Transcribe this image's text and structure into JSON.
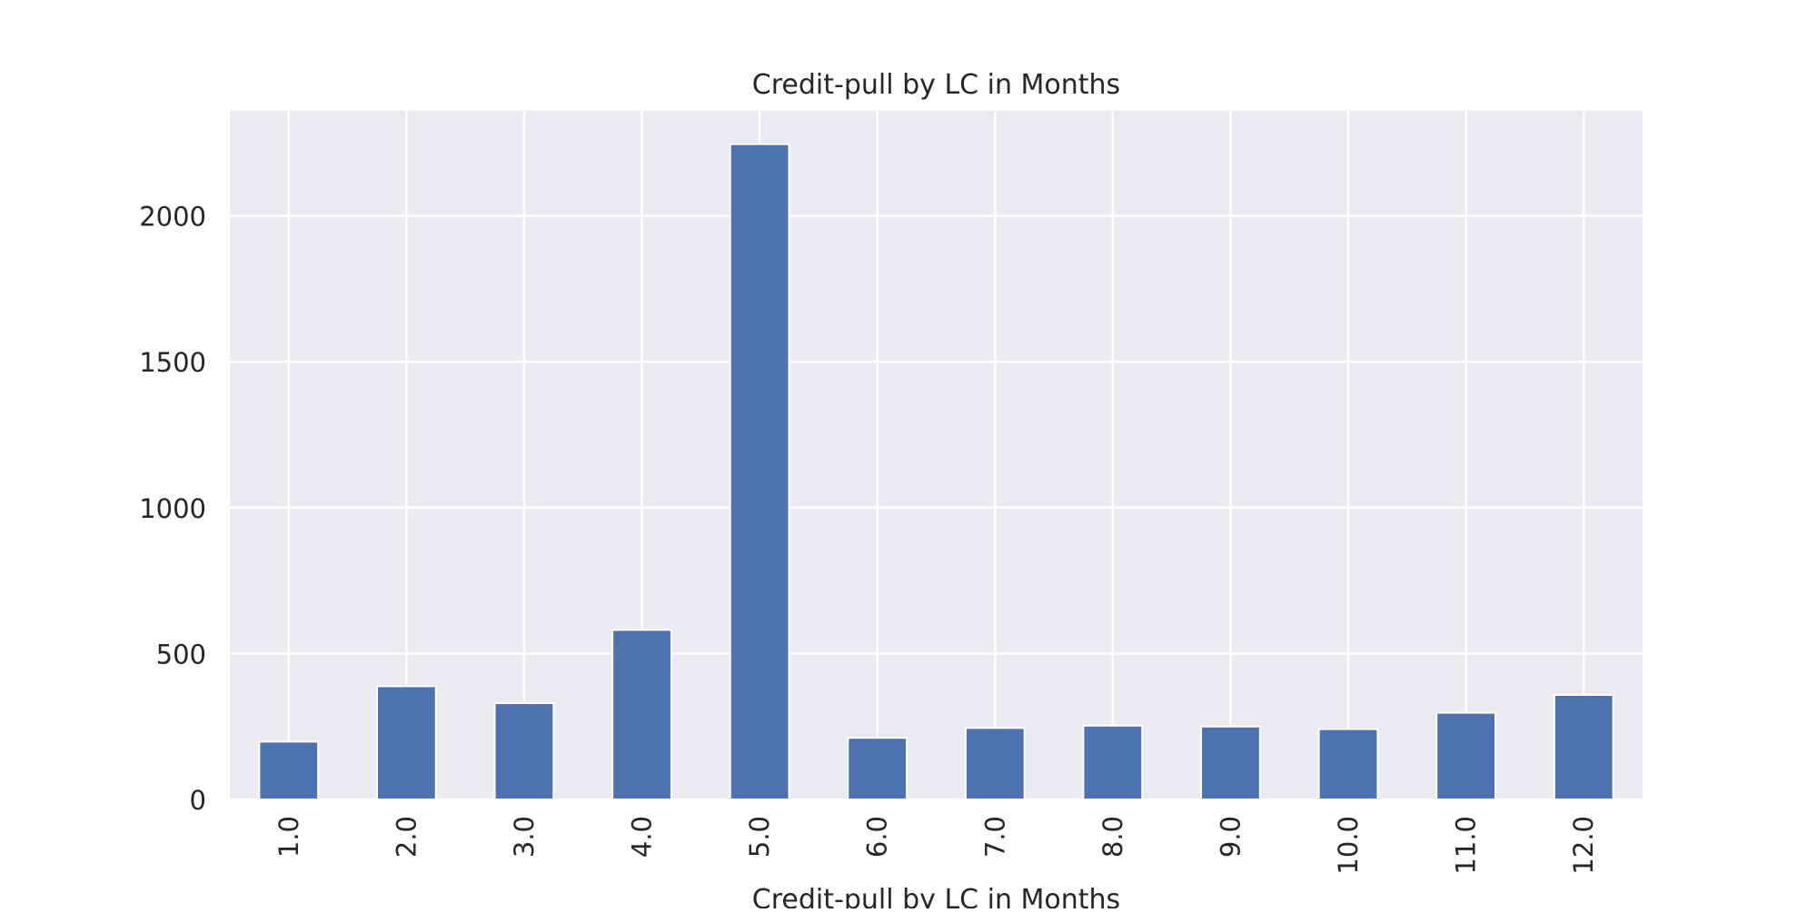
{
  "chart_data": {
    "type": "bar",
    "title": "Credit-pull by LC in Months",
    "xlabel": "Credit-pull by LC in Months",
    "ylabel": "",
    "categories": [
      "1.0",
      "2.0",
      "3.0",
      "4.0",
      "5.0",
      "6.0",
      "7.0",
      "8.0",
      "9.0",
      "10.0",
      "11.0",
      "12.0"
    ],
    "values": [
      198,
      388,
      330,
      581,
      2246,
      211,
      245,
      253,
      250,
      241,
      297,
      358
    ],
    "ylim": [
      0,
      2360
    ],
    "yticks": [
      0,
      500,
      1000,
      1500,
      2000
    ],
    "grid": true,
    "legend": "none",
    "colors": {
      "bar": "#4c72b0",
      "plot_background": "#eaeaf2",
      "grid": "#ffffff"
    }
  }
}
